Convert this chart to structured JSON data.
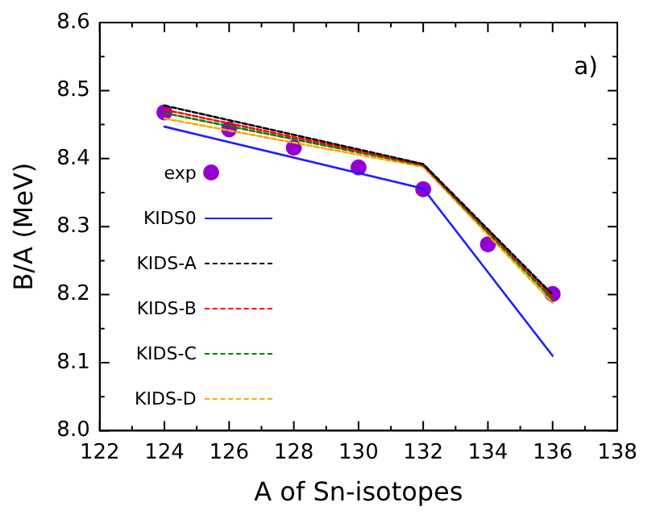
{
  "chart_data": {
    "type": "line",
    "xlabel": "A of Sn-isotopes",
    "ylabel": "B/A (MeV)",
    "annotations": [
      "a)"
    ],
    "xlim": [
      122,
      138
    ],
    "xticks": [
      122,
      124,
      126,
      128,
      130,
      132,
      134,
      136,
      138
    ],
    "ylim": [
      8.0,
      8.6
    ],
    "yticks": [
      {
        "value": 8.0,
        "label": "8.0"
      },
      8.1,
      8.2,
      8.3,
      8.4,
      8.5,
      8.6
    ],
    "grid": false,
    "legend": "left",
    "series": [
      {
        "name": "exp",
        "type": "scatter",
        "marker": "circle",
        "color": "#9400d3",
        "x": [
          124,
          126,
          128,
          130,
          132,
          134,
          136
        ],
        "values": [
          8.468,
          8.443,
          8.416,
          8.387,
          8.355,
          8.274,
          8.201
        ]
      },
      {
        "name": "KIDS0",
        "color": "#1f1fff",
        "line_style": "solid",
        "marker": "none",
        "x": [
          124,
          132,
          136
        ],
        "values": [
          8.447,
          8.356,
          8.11
        ]
      },
      {
        "name": "KIDS-A",
        "color": "#000000",
        "line_style": "dashed",
        "marker": "none",
        "x": [
          124,
          132,
          136
        ],
        "values": [
          8.478,
          8.392,
          8.2
        ]
      },
      {
        "name": "KIDS-B",
        "color": "#ff0000",
        "line_style": "dashed",
        "marker": "none",
        "x": [
          124,
          132,
          136
        ],
        "values": [
          8.472,
          8.391,
          8.197
        ]
      },
      {
        "name": "KIDS-C",
        "color": "#008000",
        "line_style": "dashed",
        "marker": "none",
        "x": [
          124,
          132,
          136
        ],
        "values": [
          8.467,
          8.39,
          8.193
        ]
      },
      {
        "name": "KIDS-D",
        "color": "#ffa500",
        "line_style": "dashed",
        "marker": "none",
        "x": [
          124,
          132,
          136
        ],
        "values": [
          8.459,
          8.388,
          8.188
        ]
      }
    ]
  }
}
